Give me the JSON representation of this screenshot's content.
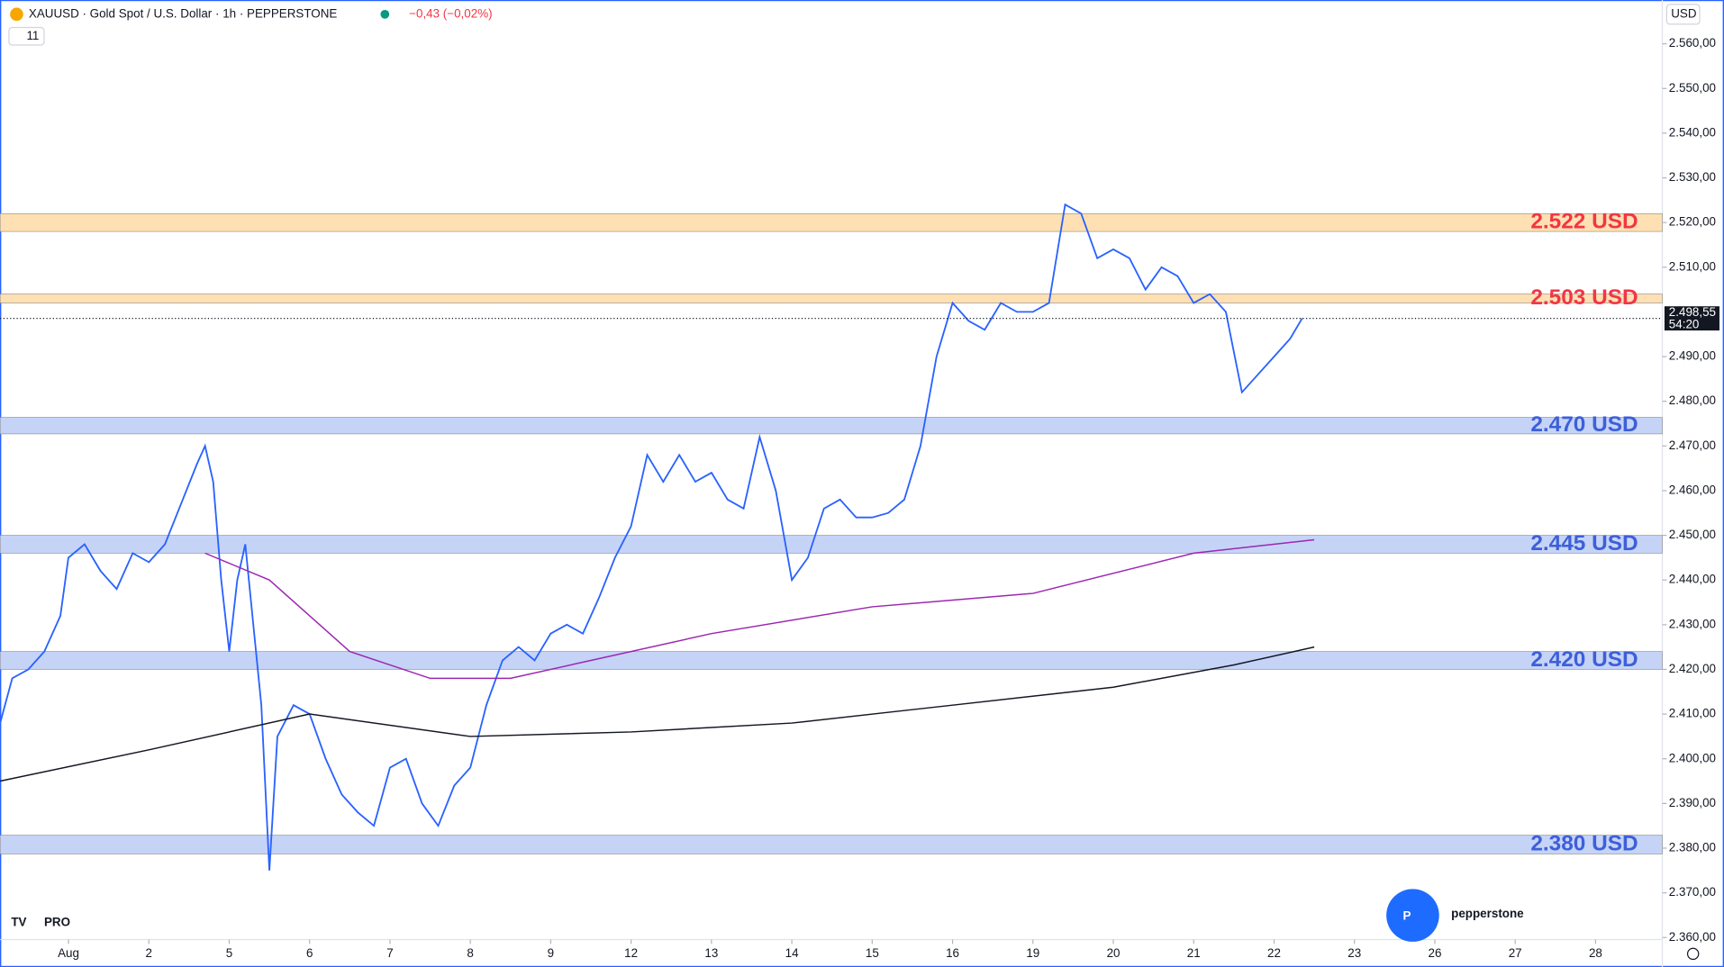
{
  "chart_data": {
    "type": "line",
    "title": "XAUUSD · Gold Spot / U.S. Dollar · 1h · PEPPERSTONE",
    "change": "−0,43 (−0,02%)",
    "indicator_count": "11",
    "currency": "USD",
    "brand": "pepperstone",
    "badge": "PRO",
    "xlim": [
      -0.85,
      19.83
    ],
    "ylim": [
      2353.4,
      2569.8
    ],
    "xticks": [
      {
        "value": 0,
        "label": "Aug"
      },
      {
        "value": 1,
        "label": "2"
      },
      {
        "value": 2,
        "label": "5"
      },
      {
        "value": 3,
        "label": "6"
      },
      {
        "value": 4,
        "label": "7"
      },
      {
        "value": 5,
        "label": "8"
      },
      {
        "value": 6,
        "label": "9"
      },
      {
        "value": 7,
        "label": "12"
      },
      {
        "value": 8,
        "label": "13"
      },
      {
        "value": 9,
        "label": "14"
      },
      {
        "value": 10,
        "label": "15"
      },
      {
        "value": 11,
        "label": "16"
      },
      {
        "value": 12,
        "label": "19"
      },
      {
        "value": 13,
        "label": "20"
      },
      {
        "value": 14,
        "label": "21"
      },
      {
        "value": 15,
        "label": "22"
      },
      {
        "value": 16,
        "label": "23"
      },
      {
        "value": 17,
        "label": "26"
      },
      {
        "value": 18,
        "label": "27"
      },
      {
        "value": 19,
        "label": "28"
      }
    ],
    "yticks": [
      {
        "value": 2360,
        "label": "2.360,00"
      },
      {
        "value": 2370,
        "label": "2.370,00"
      },
      {
        "value": 2380,
        "label": "2.380,00"
      },
      {
        "value": 2390,
        "label": "2.390,00"
      },
      {
        "value": 2400,
        "label": "2.400,00"
      },
      {
        "value": 2410,
        "label": "2.410,00"
      },
      {
        "value": 2420,
        "label": "2.420,00"
      },
      {
        "value": 2430,
        "label": "2.430,00"
      },
      {
        "value": 2440,
        "label": "2.440,00"
      },
      {
        "value": 2450,
        "label": "2.450,00"
      },
      {
        "value": 2460,
        "label": "2.460,00"
      },
      {
        "value": 2470,
        "label": "2.470,00"
      },
      {
        "value": 2480,
        "label": "2.480,00"
      },
      {
        "value": 2490,
        "label": "2.490,00"
      },
      {
        "value": 2510,
        "label": "2.510,00"
      },
      {
        "value": 2520,
        "label": "2.520,00"
      },
      {
        "value": 2530,
        "label": "2.530,00"
      },
      {
        "value": 2540,
        "label": "2.540,00"
      },
      {
        "value": 2550,
        "label": "2.550,00"
      },
      {
        "value": 2560,
        "label": "2.560,00"
      }
    ],
    "series": [
      {
        "color": "#2962ff",
        "x": [
          -0.85,
          -0.7,
          -0.5,
          -0.3,
          -0.1,
          0,
          0.2,
          0.4,
          0.6,
          0.8,
          1.0,
          1.2,
          1.4,
          1.6,
          1.7,
          1.8,
          1.9,
          2.0,
          2.1,
          2.2,
          2.3,
          2.4,
          2.5,
          2.6,
          2.8,
          3.0,
          3.2,
          3.4,
          3.6,
          3.8,
          4.0,
          4.2,
          4.4,
          4.6,
          4.8,
          5.0,
          5.2,
          5.4,
          5.6,
          5.8,
          6.0,
          6.2,
          6.4,
          6.6,
          6.8,
          7.0,
          7.2,
          7.4,
          7.6,
          7.8,
          8.0,
          8.2,
          8.4,
          8.6,
          8.8,
          9.0,
          9.2,
          9.4,
          9.6,
          9.8,
          10.0,
          10.2,
          10.4,
          10.6,
          10.8,
          11.0,
          11.2,
          11.4,
          11.6,
          11.8,
          12.0,
          12.2,
          12.4,
          12.6,
          12.8,
          13.0,
          13.2,
          13.4,
          13.6,
          13.8,
          14.0,
          14.2,
          14.4,
          14.6,
          14.8,
          15.0,
          15.2,
          15.35
        ],
        "values": [
          2408,
          2418,
          2420,
          2424,
          2432,
          2445,
          2448,
          2442,
          2438,
          2446,
          2444,
          2448,
          2457,
          2466,
          2470,
          2462,
          2440,
          2424,
          2440,
          2448,
          2430,
          2412,
          2375,
          2405,
          2412,
          2410,
          2400,
          2392,
          2388,
          2385,
          2398,
          2400,
          2390,
          2385,
          2394,
          2398,
          2412,
          2422,
          2425,
          2422,
          2428,
          2430,
          2428,
          2436,
          2445,
          2452,
          2468,
          2462,
          2468,
          2462,
          2464,
          2458,
          2456,
          2472,
          2460,
          2440,
          2445,
          2456,
          2458,
          2454,
          2454,
          2455,
          2458,
          2470,
          2490,
          2502,
          2498,
          2496,
          2502,
          2500,
          2500,
          2502,
          2524,
          2522,
          2512,
          2514,
          2512,
          2505,
          2510,
          2508,
          2502,
          2504,
          2500,
          2482,
          2486,
          2490,
          2494,
          2498.55
        ]
      },
      {
        "color": "#9c27b0",
        "x": [
          1.7,
          2.5,
          3.5,
          4.5,
          5.5,
          6.5,
          8.0,
          10,
          12,
          14,
          15.5
        ],
        "values": [
          2446,
          2440,
          2424,
          2418,
          2418,
          2422,
          2428,
          2434,
          2437,
          2446,
          2449
        ]
      },
      {
        "color": "#131722",
        "x": [
          -0.85,
          1,
          3,
          5,
          7,
          9,
          11,
          13,
          14.5,
          15.5
        ],
        "values": [
          2395,
          2402,
          2410,
          2405,
          2406,
          2408,
          2412,
          2416,
          2421,
          2425
        ]
      }
    ],
    "zones": [
      {
        "low": 2518,
        "high": 2522,
        "label": "2.522 USD",
        "color": "#ffe0b2",
        "text_color": "#f23645"
      },
      {
        "low": 2502,
        "high": 2504,
        "label": "2.503 USD",
        "color": "#ffe0b2",
        "text_color": "#f23645"
      },
      {
        "low": 2472.7,
        "high": 2476.4,
        "label": "2.470 USD",
        "color": "#c5d3f7",
        "text_color": "#3d5fd9"
      },
      {
        "low": 2446,
        "high": 2450,
        "label": "2.445 USD",
        "color": "#c5d3f7",
        "text_color": "#3d5fd9"
      },
      {
        "low": 2420,
        "high": 2424,
        "label": "2.420 USD",
        "color": "#c5d3f7",
        "text_color": "#3d5fd9"
      },
      {
        "low": 2378.7,
        "high": 2382.9,
        "label": "2.380 USD",
        "color": "#c5d3f7",
        "text_color": "#3d5fd9"
      }
    ],
    "last_price": {
      "value": 2498.55,
      "label": "2.498,55",
      "countdown": "54:20"
    }
  }
}
